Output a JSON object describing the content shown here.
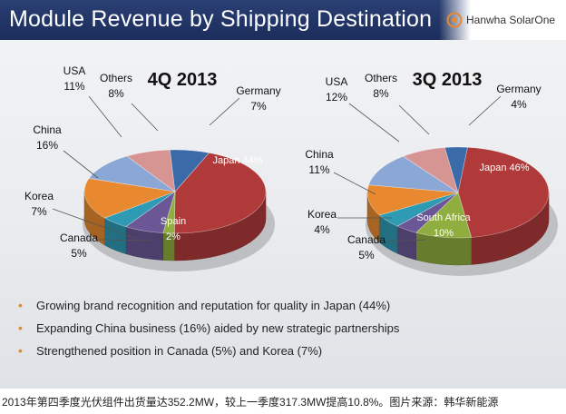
{
  "header": {
    "title": "Module Revenue by Shipping Destination",
    "logo_text": "Hanwha SolarOne"
  },
  "chart_data": [
    {
      "type": "pie",
      "title": "4Q 2013",
      "slices": [
        {
          "label": "Japan",
          "value": 44,
          "value_text": "44%",
          "color": "#b03a3a"
        },
        {
          "label": "Spain",
          "value": 2,
          "value_text": "2%",
          "color": "#8fae3f"
        },
        {
          "label": "Korea",
          "value": 7,
          "value_text": "7%",
          "color": "#6b5796"
        },
        {
          "label": "Canada",
          "value": 5,
          "value_text": "5%",
          "color": "#2f9ab4"
        },
        {
          "label": "China",
          "value": 16,
          "value_text": "16%",
          "color": "#e8892f"
        },
        {
          "label": "USA",
          "value": 11,
          "value_text": "11%",
          "color": "#8aa7d6"
        },
        {
          "label": "Others",
          "value": 8,
          "value_text": "8%",
          "color": "#d69593"
        },
        {
          "label": "Germany",
          "value": 7,
          "value_text": "7%",
          "color": "#3a6aa8"
        }
      ]
    },
    {
      "type": "pie",
      "title": "3Q 2013",
      "slices": [
        {
          "label": "Japan",
          "value": 46,
          "value_text": "46%",
          "color": "#b03a3a"
        },
        {
          "label": "South Africa",
          "value": 10,
          "value_text": "10%",
          "color": "#8fae3f"
        },
        {
          "label": "Korea",
          "value": 4,
          "value_text": "4%",
          "color": "#6b5796"
        },
        {
          "label": "Canada",
          "value": 5,
          "value_text": "5%",
          "color": "#2f9ab4"
        },
        {
          "label": "China",
          "value": 11,
          "value_text": "11%",
          "color": "#e8892f"
        },
        {
          "label": "USA",
          "value": 12,
          "value_text": "12%",
          "color": "#8aa7d6"
        },
        {
          "label": "Others",
          "value": 8,
          "value_text": "8%",
          "color": "#d69593"
        },
        {
          "label": "Germany",
          "value": 4,
          "value_text": "4%",
          "color": "#3a6aa8"
        }
      ]
    }
  ],
  "bullets": [
    "Growing brand recognition and reputation for quality in Japan (44%)",
    "Expanding China business (16%) aided by new strategic partnerships",
    "Strengthened position in Canada (5%) and Korea (7%)"
  ],
  "caption": "2013年第四季度光伏组件出货量达352.2MW，较上一季度317.3MW提高10.8%。图片来源：韩华新能源"
}
